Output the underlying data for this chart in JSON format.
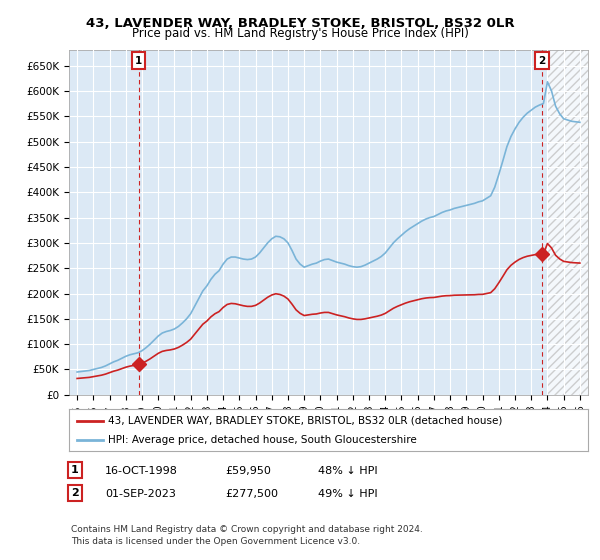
{
  "title": "43, LAVENDER WAY, BRADLEY STOKE, BRISTOL, BS32 0LR",
  "subtitle": "Price paid vs. HM Land Registry's House Price Index (HPI)",
  "legend_line1": "43, LAVENDER WAY, BRADLEY STOKE, BRISTOL, BS32 0LR (detached house)",
  "legend_line2": "HPI: Average price, detached house, South Gloucestershire",
  "footnote": "Contains HM Land Registry data © Crown copyright and database right 2024.\nThis data is licensed under the Open Government Licence v3.0.",
  "sale1_date": 1998.79,
  "sale1_price": 59950,
  "sale2_date": 2023.67,
  "sale2_price": 277500,
  "ylim_max": 680000,
  "yticks": [
    0,
    50000,
    100000,
    150000,
    200000,
    250000,
    300000,
    350000,
    400000,
    450000,
    500000,
    550000,
    600000,
    650000
  ],
  "ytick_labels": [
    "£0",
    "£50K",
    "£100K",
    "£150K",
    "£200K",
    "£250K",
    "£300K",
    "£350K",
    "£400K",
    "£450K",
    "£500K",
    "£550K",
    "£600K",
    "£650K"
  ],
  "hpi_color": "#7ab4d8",
  "sale_color": "#cc2222",
  "background_color": "#ffffff",
  "plot_bg_color": "#dce9f5",
  "grid_color": "#ffffff",
  "hatch_color": "#c0c0c0",
  "future_cutoff": 2024.0,
  "xlim_left": 1994.5,
  "xlim_right": 2026.5,
  "title_fontsize": 9.5,
  "subtitle_fontsize": 8.5,
  "tick_fontsize": 7.5,
  "legend_fontsize": 7.5,
  "table_fontsize": 8,
  "footnote_fontsize": 6.5
}
